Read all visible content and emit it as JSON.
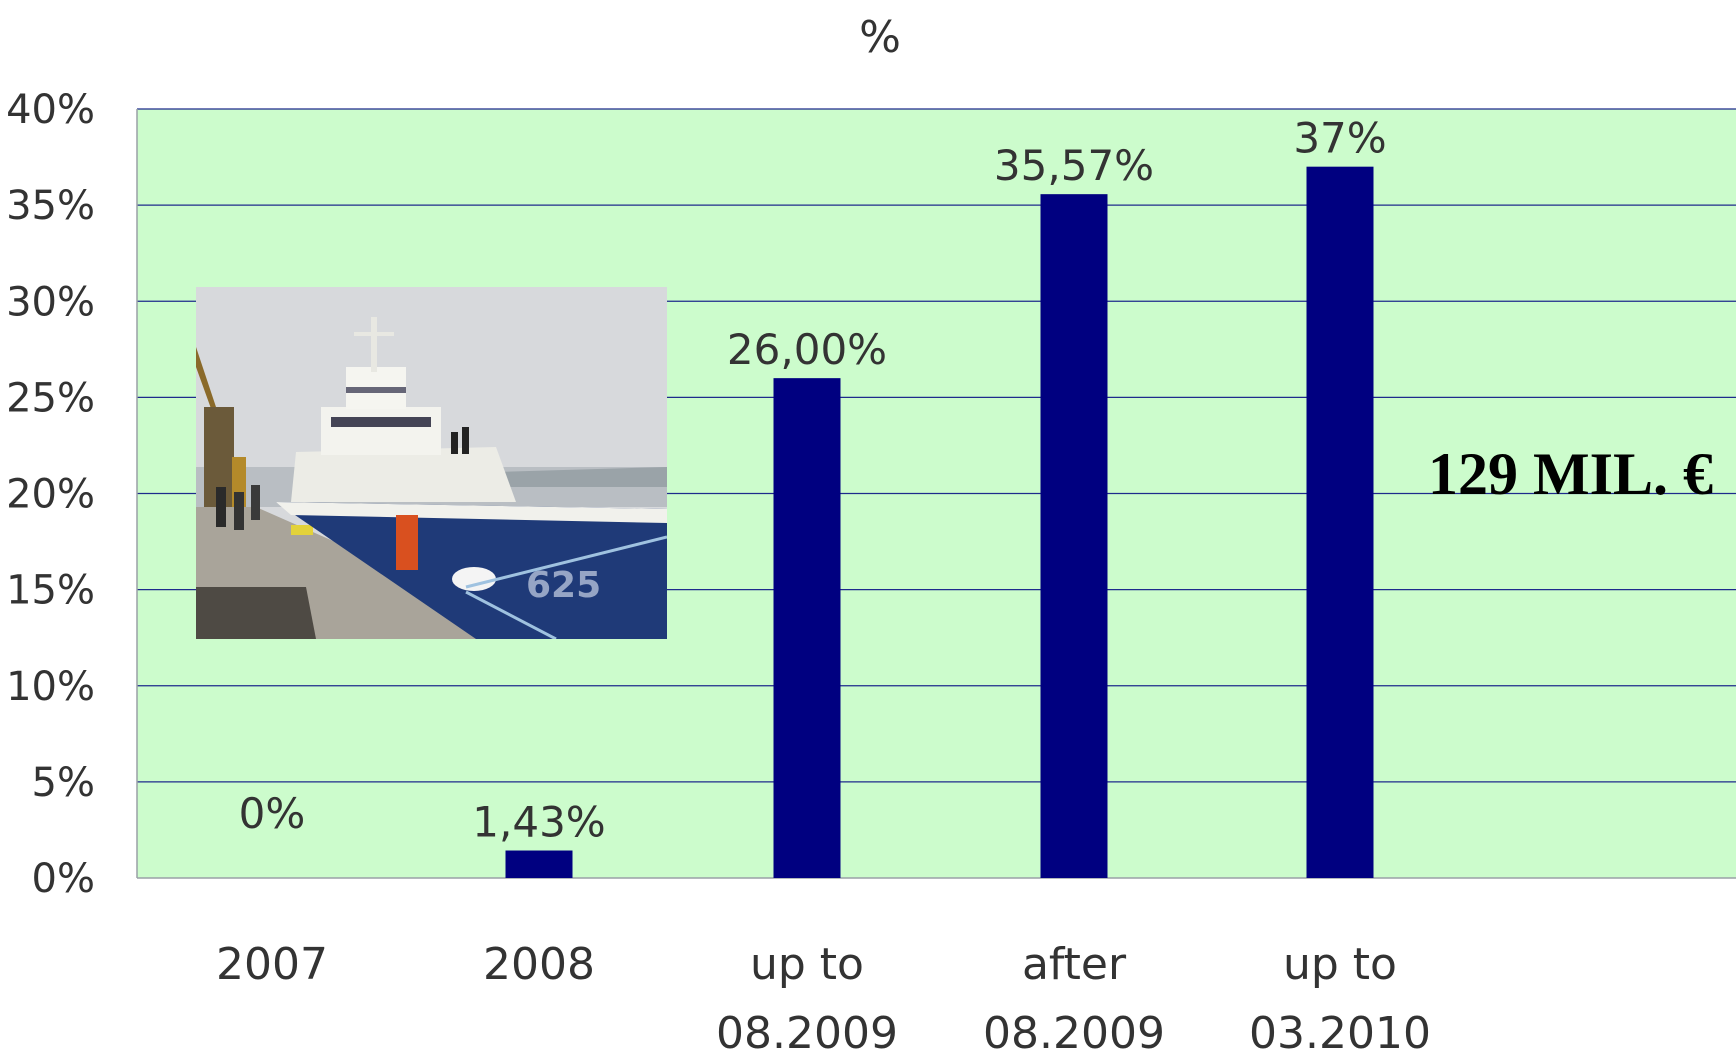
{
  "chart_data": {
    "type": "bar",
    "title": "%",
    "xlabel": "",
    "ylabel": "",
    "categories": [
      [
        "2007"
      ],
      [
        "2008"
      ],
      [
        "up to",
        "08.2009"
      ],
      [
        "after",
        "08.2009"
      ],
      [
        "up to",
        "03.2010"
      ]
    ],
    "values": [
      0,
      1.43,
      26.0,
      35.57,
      37
    ],
    "data_labels": [
      "0%",
      "1,43%",
      "26,00%",
      "35,57%",
      "37%"
    ],
    "ylim": [
      0,
      40
    ],
    "yticks": [
      "0%",
      "5%",
      "10%",
      "15%",
      "20%",
      "25%",
      "30%",
      "35%",
      "40%"
    ],
    "grid": true,
    "legend": "none",
    "annotation": "129 MIL. €",
    "colors": {
      "plot_bg": "#ccfccc",
      "bar": "#000080",
      "grid": "#1e2a8c",
      "text": "#333333",
      "annotation": "#000000"
    }
  },
  "photo": {
    "hull_number": "625"
  }
}
